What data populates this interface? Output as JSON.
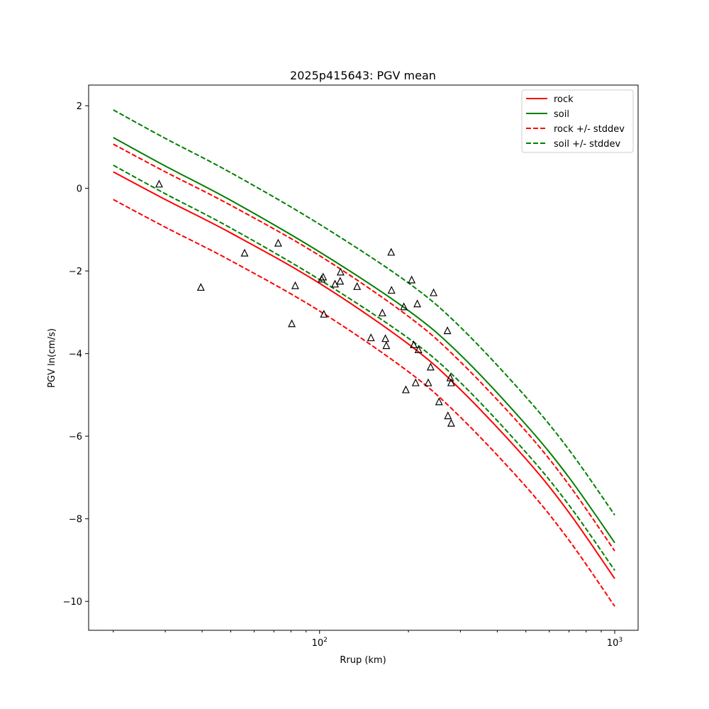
{
  "chart_data": {
    "type": "line",
    "title": "2025p415643: PGV mean",
    "xlabel": "Rrup (km)",
    "ylabel": "PGV ln(cm/s)",
    "x_scale": "log",
    "xlim": [
      16.5,
      1200
    ],
    "ylim": [
      -10.7,
      2.5
    ],
    "x_tick_labels": [
      {
        "value": 100,
        "base": "10",
        "exp": "2"
      },
      {
        "value": 1000,
        "base": "10",
        "exp": "3"
      }
    ],
    "y_ticks": [
      2,
      0,
      -2,
      -4,
      -6,
      -8,
      -10
    ],
    "y_tick_labels": [
      "2",
      "0",
      "−2",
      "−4",
      "−6",
      "−8",
      "−10"
    ],
    "grid": false,
    "legend_position": "top-right",
    "legend_line_width": 2,
    "series": [
      {
        "name": "rock",
        "color": "#ff0000",
        "dashed": false,
        "x": [
          20,
          30,
          50,
          100,
          200,
          300,
          500,
          700,
          1000
        ],
        "y": [
          0.4,
          -0.27,
          -1.08,
          -2.3,
          -3.77,
          -4.87,
          -6.55,
          -7.85,
          -9.45
        ]
      },
      {
        "name": "soil",
        "color": "#008000",
        "dashed": false,
        "x": [
          20,
          30,
          50,
          100,
          200,
          300,
          500,
          700,
          1000
        ],
        "y": [
          1.23,
          0.54,
          -0.29,
          -1.54,
          -2.96,
          -4.03,
          -5.72,
          -7.0,
          -8.58
        ]
      },
      {
        "name": "rock +/- stddev",
        "color": "#ff0000",
        "dashed": true,
        "x": [
          20,
          30,
          50,
          100,
          200,
          300,
          500,
          700,
          1000
        ],
        "y": [
          1.07,
          0.4,
          -0.41,
          -1.63,
          -3.1,
          -4.2,
          -5.88,
          -7.18,
          -8.78
        ]
      },
      {
        "name": "rock +/- stddev",
        "color": "#ff0000",
        "dashed": true,
        "legend": false,
        "x": [
          20,
          30,
          50,
          100,
          200,
          300,
          500,
          700,
          1000
        ],
        "y": [
          -0.27,
          -0.94,
          -1.75,
          -2.97,
          -4.44,
          -5.54,
          -7.22,
          -8.52,
          -10.12
        ]
      },
      {
        "name": "soil +/- stddev",
        "color": "#008000",
        "dashed": true,
        "x": [
          20,
          30,
          50,
          100,
          200,
          300,
          500,
          700,
          1000
        ],
        "y": [
          1.9,
          1.21,
          0.38,
          -0.87,
          -2.29,
          -3.36,
          -5.05,
          -6.33,
          -7.91
        ]
      },
      {
        "name": "soil +/- stddev",
        "color": "#008000",
        "dashed": true,
        "legend": false,
        "x": [
          20,
          30,
          50,
          100,
          200,
          300,
          500,
          700,
          1000
        ],
        "y": [
          0.56,
          -0.13,
          -0.96,
          -2.21,
          -3.63,
          -4.7,
          -6.39,
          -7.67,
          -9.25
        ]
      }
    ],
    "observations": {
      "marker": "triangle",
      "color": "#000000",
      "points": [
        [
          28.6,
          0.1
        ],
        [
          39.6,
          -2.4
        ],
        [
          55.7,
          -1.57
        ],
        [
          72.4,
          -1.33
        ],
        [
          80.5,
          -3.28
        ],
        [
          82.7,
          -2.36
        ],
        [
          101.6,
          -2.2
        ],
        [
          102.8,
          -2.15
        ],
        [
          103.4,
          -3.05
        ],
        [
          112.8,
          -2.32
        ],
        [
          117.4,
          -2.25
        ],
        [
          117.8,
          -2.03
        ],
        [
          134.0,
          -2.38
        ],
        [
          149.3,
          -3.62
        ],
        [
          163.2,
          -3.02
        ],
        [
          167.1,
          -3.64
        ],
        [
          168.3,
          -3.81
        ],
        [
          174.8,
          -1.55
        ],
        [
          175.3,
          -2.47
        ],
        [
          193.0,
          -2.87
        ],
        [
          196.0,
          -4.88
        ],
        [
          205.1,
          -2.22
        ],
        [
          208.4,
          -3.79
        ],
        [
          211.6,
          -4.71
        ],
        [
          214.3,
          -2.8
        ],
        [
          216.3,
          -3.91
        ],
        [
          233.5,
          -4.71
        ],
        [
          237.8,
          -4.33
        ],
        [
          243.4,
          -2.53
        ],
        [
          253.9,
          -5.17
        ],
        [
          271.1,
          -3.45
        ],
        [
          272.2,
          -5.51
        ],
        [
          277.2,
          -4.59
        ],
        [
          279.1,
          -4.71
        ],
        [
          279.2,
          -5.69
        ]
      ]
    }
  }
}
